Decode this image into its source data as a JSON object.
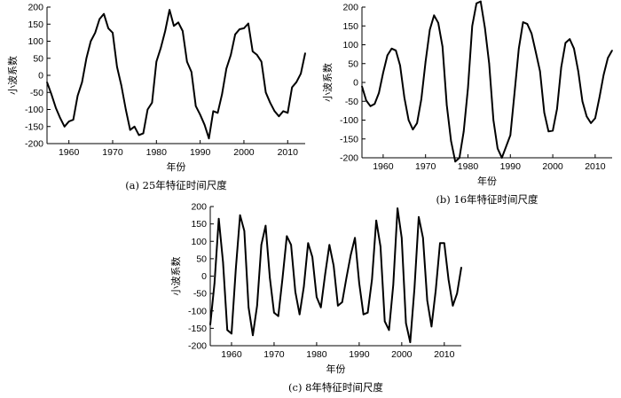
{
  "chart_data": [
    {
      "type": "line",
      "caption": "(a) 25年特征时间尺度",
      "xlabel": "年份",
      "ylabel": "小波系数",
      "xlim": [
        1955,
        2014
      ],
      "ylim": [
        -200,
        200
      ],
      "xticks": [
        1960,
        1970,
        1980,
        1990,
        2000,
        2010
      ],
      "yticks": [
        200,
        150,
        100,
        50,
        0,
        -50,
        -100,
        -150,
        -200
      ],
      "x": [
        1955,
        1956,
        1957,
        1958,
        1959,
        1960,
        1961,
        1962,
        1963,
        1964,
        1965,
        1966,
        1967,
        1968,
        1969,
        1970,
        1971,
        1972,
        1973,
        1974,
        1975,
        1976,
        1977,
        1978,
        1979,
        1980,
        1981,
        1982,
        1983,
        1984,
        1985,
        1986,
        1987,
        1988,
        1989,
        1990,
        1991,
        1992,
        1993,
        1994,
        1995,
        1996,
        1997,
        1998,
        1999,
        2000,
        2001,
        2002,
        2003,
        2004,
        2005,
        2006,
        2007,
        2008,
        2009,
        2010,
        2011,
        2012,
        2013,
        2014
      ],
      "values": [
        -20,
        -55,
        -95,
        -125,
        -150,
        -135,
        -130,
        -60,
        -20,
        50,
        100,
        125,
        165,
        180,
        138,
        125,
        25,
        -30,
        -100,
        -160,
        -150,
        -175,
        -170,
        -100,
        -80,
        40,
        80,
        130,
        192,
        145,
        155,
        130,
        40,
        10,
        -90,
        -115,
        -145,
        -185,
        -105,
        -110,
        -55,
        20,
        60,
        120,
        135,
        138,
        152,
        70,
        60,
        40,
        -50,
        -80,
        -105,
        -120,
        -105,
        -110,
        -35,
        -20,
        5,
        65
      ]
    },
    {
      "type": "line",
      "caption": "(b) 16年特征时间尺度",
      "xlabel": "年份",
      "ylabel": "小波系数",
      "xlim": [
        1955,
        2014
      ],
      "ylim": [
        -200,
        200
      ],
      "xticks": [
        1960,
        1970,
        1980,
        1990,
        2000,
        2010
      ],
      "yticks": [
        200,
        150,
        100,
        50,
        0,
        -50,
        -100,
        -150,
        -200
      ],
      "x": [
        1955,
        1956,
        1957,
        1958,
        1959,
        1960,
        1961,
        1962,
        1963,
        1964,
        1965,
        1966,
        1967,
        1968,
        1969,
        1970,
        1971,
        1972,
        1973,
        1974,
        1975,
        1976,
        1977,
        1978,
        1979,
        1980,
        1981,
        1982,
        1983,
        1984,
        1985,
        1986,
        1987,
        1988,
        1989,
        1990,
        1991,
        1992,
        1993,
        1994,
        1995,
        1996,
        1997,
        1998,
        1999,
        2000,
        2001,
        2002,
        2003,
        2004,
        2005,
        2006,
        2007,
        2008,
        2009,
        2010,
        2011,
        2012,
        2013,
        2014
      ],
      "values": [
        -10,
        -48,
        -63,
        -57,
        -28,
        26,
        72,
        90,
        85,
        45,
        -40,
        -100,
        -125,
        -108,
        -45,
        55,
        140,
        178,
        158,
        95,
        -60,
        -155,
        -210,
        -200,
        -130,
        -15,
        150,
        210,
        215,
        145,
        50,
        -100,
        -175,
        -200,
        -170,
        -140,
        -25,
        90,
        160,
        155,
        130,
        80,
        30,
        -80,
        -130,
        -128,
        -70,
        40,
        105,
        115,
        90,
        30,
        -50,
        -90,
        -108,
        -95,
        -40,
        20,
        65,
        85
      ]
    },
    {
      "type": "line",
      "caption": "(c) 8年特征时间尺度",
      "xlabel": "年份",
      "ylabel": "小波系数",
      "xlim": [
        1955,
        2014
      ],
      "ylim": [
        -200,
        200
      ],
      "xticks": [
        1960,
        1970,
        1980,
        1990,
        2000,
        2010
      ],
      "yticks": [
        200,
        150,
        100,
        50,
        0,
        -50,
        -100,
        -150,
        -200
      ],
      "x": [
        1955,
        1956,
        1957,
        1958,
        1959,
        1960,
        1961,
        1962,
        1963,
        1964,
        1965,
        1966,
        1967,
        1968,
        1969,
        1970,
        1971,
        1972,
        1973,
        1974,
        1975,
        1976,
        1977,
        1978,
        1979,
        1980,
        1981,
        1982,
        1983,
        1984,
        1985,
        1986,
        1987,
        1988,
        1989,
        1990,
        1991,
        1992,
        1993,
        1994,
        1995,
        1996,
        1997,
        1998,
        1999,
        2000,
        2001,
        2002,
        2003,
        2004,
        2005,
        2006,
        2007,
        2008,
        2009,
        2010,
        2011,
        2012,
        2013,
        2014
      ],
      "values": [
        -140,
        -20,
        165,
        40,
        -155,
        -165,
        20,
        175,
        130,
        -90,
        -170,
        -85,
        90,
        145,
        -5,
        -105,
        -115,
        -5,
        115,
        90,
        -45,
        -110,
        -30,
        95,
        55,
        -60,
        -90,
        5,
        90,
        30,
        -85,
        -75,
        -5,
        60,
        110,
        -20,
        -110,
        -105,
        -10,
        160,
        85,
        -130,
        -155,
        -25,
        195,
        110,
        -135,
        -190,
        -35,
        170,
        110,
        -70,
        -145,
        -40,
        95,
        95,
        -10,
        -85,
        -50,
        25
      ]
    }
  ]
}
